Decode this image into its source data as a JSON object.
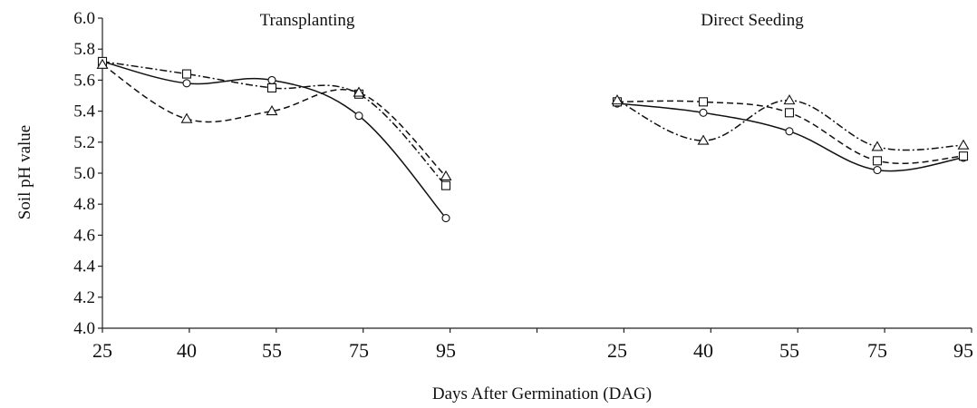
{
  "chart_data": {
    "type": "line",
    "ylabel": "Soil pH value",
    "xlabel": "Days After Germination (DAG)",
    "ylim": [
      4.0,
      6.0
    ],
    "yticks": [
      "4.0",
      "4.2",
      "4.4",
      "4.6",
      "4.8",
      "5.0",
      "5.2",
      "5.4",
      "5.6",
      "5.8",
      "6.0"
    ],
    "grid": false,
    "legend": "none",
    "panels": [
      {
        "title": "Transplanting",
        "x": [
          "25",
          "40",
          "55",
          "75",
          "95"
        ],
        "series": [
          {
            "marker": "circle",
            "dash": "solid",
            "values": [
              5.72,
              5.58,
              5.6,
              5.37,
              4.71
            ]
          },
          {
            "marker": "square",
            "dash": "dash-dot",
            "values": [
              5.72,
              5.64,
              5.55,
              5.51,
              4.92
            ]
          },
          {
            "marker": "triangle",
            "dash": "dashed",
            "values": [
              5.7,
              5.35,
              5.4,
              5.52,
              4.98
            ]
          }
        ]
      },
      {
        "title": "Direct Seeding",
        "x": [
          "25",
          "40",
          "55",
          "75",
          "95"
        ],
        "series": [
          {
            "marker": "circle",
            "dash": "solid",
            "values": [
              5.45,
              5.39,
              5.27,
              5.02,
              5.1
            ]
          },
          {
            "marker": "square",
            "dash": "dashed",
            "values": [
              5.46,
              5.46,
              5.39,
              5.08,
              5.11
            ]
          },
          {
            "marker": "triangle",
            "dash": "dash-dot",
            "values": [
              5.47,
              5.21,
              5.47,
              5.17,
              5.18
            ]
          }
        ]
      }
    ]
  }
}
